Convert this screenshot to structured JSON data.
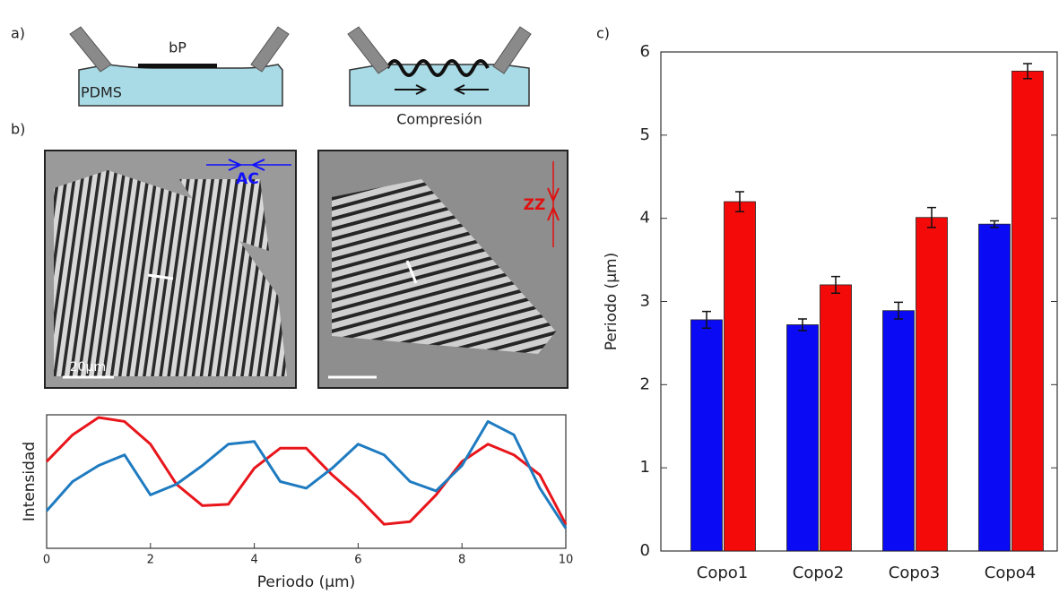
{
  "panel_labels": [
    "a)",
    "b)",
    "c)"
  ],
  "schematic": {
    "material": "bP",
    "substrate": "PDMS",
    "process": "Compresión"
  },
  "images": {
    "armchair": "AC",
    "zigzag": "ZZ",
    "scale_bar": "20µm"
  },
  "chart_data": [
    {
      "type": "line",
      "xlabel": "Periodo (µm)",
      "ylabel": "Intensidad",
      "x": [
        0,
        0.5,
        1,
        1.5,
        2,
        2.5,
        3,
        3.5,
        4,
        4.5,
        5,
        5.5,
        6,
        6.5,
        7,
        7.5,
        8,
        8.5,
        9,
        9.5,
        10
      ],
      "xlim": [
        0,
        10
      ],
      "xticks": [
        0,
        2,
        4,
        6,
        8,
        10
      ],
      "ylim": [
        0,
        1
      ],
      "series": [
        {
          "color": "#e8151b",
          "values": [
            0.65,
            0.85,
            0.98,
            0.95,
            0.78,
            0.48,
            0.32,
            0.33,
            0.6,
            0.75,
            0.75,
            0.55,
            0.38,
            0.18,
            0.2,
            0.4,
            0.65,
            0.78,
            0.7,
            0.55,
            0.18
          ]
        },
        {
          "color": "#1f7bc0",
          "values": [
            0.28,
            0.5,
            0.62,
            0.7,
            0.4,
            0.48,
            0.62,
            0.78,
            0.8,
            0.5,
            0.45,
            0.6,
            0.78,
            0.7,
            0.5,
            0.43,
            0.62,
            0.95,
            0.85,
            0.45,
            0.15
          ]
        }
      ]
    },
    {
      "type": "bar",
      "ylabel": "Periodo (µm)",
      "categories": [
        "Copo1",
        "Copo2",
        "Copo3",
        "Copo4"
      ],
      "ylim": [
        0,
        6
      ],
      "yticks": [
        0,
        1,
        2,
        3,
        4,
        5,
        6
      ],
      "series": [
        {
          "color": "#0a0af5",
          "values": [
            2.78,
            2.72,
            2.89,
            3.93
          ],
          "errors": [
            0.1,
            0.07,
            0.1,
            0.04
          ]
        },
        {
          "color": "#f50a0a",
          "values": [
            4.2,
            3.2,
            4.01,
            5.77
          ],
          "errors": [
            0.12,
            0.1,
            0.12,
            0.09
          ]
        }
      ]
    }
  ]
}
